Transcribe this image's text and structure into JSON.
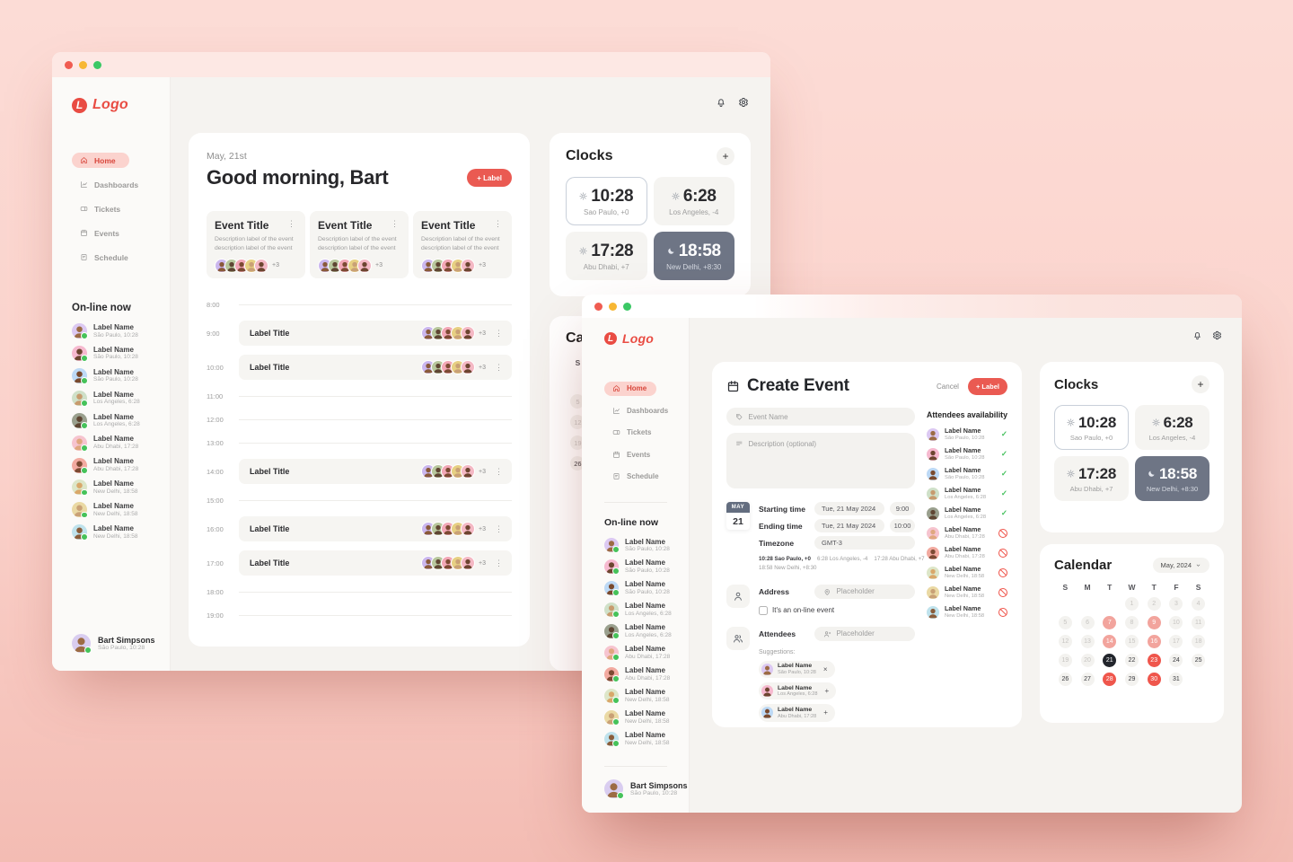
{
  "brand": {
    "logo_text": "Logo",
    "logo_letter": "L",
    "accent": "#ea5a52"
  },
  "titlebar": {
    "traffic_lights": [
      "#f05c51",
      "#f7b733",
      "#3bc865"
    ]
  },
  "icons": {
    "kebab": "⋮",
    "check": "✓",
    "add": "+",
    "bell": "bell-icon",
    "gear": "gear-icon",
    "sun": "sun-icon",
    "moon": "moon-icon",
    "chevron": "chevron-down-icon"
  },
  "nav": [
    {
      "label": "Home",
      "icon": "i-home",
      "cls": "active"
    },
    {
      "label": "Dashboards",
      "icon": "i-dash",
      "cls": ""
    },
    {
      "label": "Tickets",
      "icon": "i-ticket",
      "cls": ""
    },
    {
      "label": "Events",
      "icon": "i-events",
      "cls": ""
    },
    {
      "label": "Schedule",
      "icon": "i-schedule",
      "cls": ""
    }
  ],
  "online_heading": "On-line now",
  "online": [
    {
      "name": "Label Name",
      "sub": "São Paulo, 10:28",
      "bg": "#dcc9f2",
      "skin": "#9c6b44"
    },
    {
      "name": "Label Name",
      "sub": "São Paulo, 10:28",
      "bg": "#f6b9cf",
      "skin": "#6d4530"
    },
    {
      "name": "Label Name",
      "sub": "São Paulo, 10:28",
      "bg": "#bdd9f5",
      "skin": "#7a4a2e"
    },
    {
      "name": "Label Name",
      "sub": "Los Angeles, 6:28",
      "bg": "#cfe0c8",
      "skin": "#c79b6e"
    },
    {
      "name": "Label Name",
      "sub": "Los Angeles, 6:28",
      "bg": "#9aa08e",
      "skin": "#5f4633"
    },
    {
      "name": "Label Name",
      "sub": "Abu Dhabi, 17:28",
      "bg": "#f6c4cf",
      "skin": "#e0a77f"
    },
    {
      "name": "Label Name",
      "sub": "Abu Dhabi, 17:28",
      "bg": "#f2aaa0",
      "skin": "#7c4a33"
    },
    {
      "name": "Label Name",
      "sub": "New Delhi, 18:58",
      "bg": "#dde6c8",
      "skin": "#d9a86a"
    },
    {
      "name": "Label Name",
      "sub": "New Delhi, 18:58",
      "bg": "#ead9a4",
      "skin": "#c9a176"
    },
    {
      "name": "Label Name",
      "sub": "New Delhi, 18:58",
      "bg": "#bfe2ec",
      "skin": "#8a5d3b"
    }
  ],
  "profile": {
    "name": "Bart Simpsons",
    "sub": "São Paulo, 10:28",
    "bg": "#d9cdf0",
    "skin": "#9c6b44"
  },
  "avatar_stack": [
    {
      "bg": "#cbb7ee",
      "skin": "#8a5a3a"
    },
    {
      "bg": "#b8c79d",
      "skin": "#5f4633"
    },
    {
      "bg": "#f2a7b6",
      "skin": "#7c4a33"
    },
    {
      "bg": "#e7d083",
      "skin": "#c9a176"
    },
    {
      "bg": "#f4b8c4",
      "skin": "#6d4530"
    }
  ],
  "back": {
    "date": "May, 21st",
    "greeting": "Good morning, Bart",
    "label_button": "+ Label",
    "event_cards": [
      {
        "title": "Event Title",
        "desc": "Description label of the event description label of the event",
        "extra": "+3"
      },
      {
        "title": "Event Title",
        "desc": "Description label of the event description label of the event",
        "extra": "+3"
      },
      {
        "title": "Event Title",
        "desc": "Description label of the event description label of the event",
        "extra": "+3"
      }
    ],
    "schedule": [
      {
        "time": "8:00",
        "cls": "line"
      },
      {
        "time": "9:00",
        "cls": "event",
        "title": "Label Title",
        "extra": "+3"
      },
      {
        "time": "10:00",
        "cls": "event",
        "title": "Label Title",
        "extra": "+3"
      },
      {
        "time": "11:00",
        "cls": "line"
      },
      {
        "time": "12:00",
        "cls": "line"
      },
      {
        "time": "13:00",
        "cls": "line"
      },
      {
        "time": "14:00",
        "cls": "event",
        "title": "Label Title",
        "extra": "+3"
      },
      {
        "time": "15:00",
        "cls": "line"
      },
      {
        "time": "16:00",
        "cls": "event",
        "title": "Label Title",
        "extra": "+3"
      },
      {
        "time": "17:00",
        "cls": "event",
        "title": "Label Title",
        "extra": "+3"
      },
      {
        "time": "18:00",
        "cls": "line"
      },
      {
        "time": "19:00",
        "cls": "line"
      }
    ]
  },
  "clocks": {
    "title": "Clocks",
    "add": "+",
    "tiles": [
      {
        "time": "10:28",
        "city": "Sao Paulo, +0",
        "icon": "i-sun",
        "cls": "outlined"
      },
      {
        "time": "6:28",
        "city": "Los Angeles, -4",
        "icon": "i-sun",
        "cls": ""
      },
      {
        "time": "17:28",
        "city": "Abu Dhabi, +7",
        "icon": "i-sun",
        "cls": ""
      },
      {
        "time": "18:58",
        "city": "New Delhi, +8:30",
        "icon": "i-moon",
        "cls": "dark"
      }
    ]
  },
  "calendar": {
    "title": "Calendar",
    "month": "May, 2024",
    "weekdays": [
      "S",
      "M",
      "T",
      "W",
      "T",
      "F",
      "S"
    ],
    "cells": [
      {
        "d": "",
        "cls": "empty"
      },
      {
        "d": "",
        "cls": "empty"
      },
      {
        "d": "",
        "cls": "empty"
      },
      {
        "d": "1",
        "cls": "dim"
      },
      {
        "d": "2",
        "cls": "dim"
      },
      {
        "d": "3",
        "cls": "dim"
      },
      {
        "d": "4",
        "cls": "dim"
      },
      {
        "d": "5",
        "cls": "dim"
      },
      {
        "d": "6",
        "cls": "dim"
      },
      {
        "d": "7",
        "cls": "pink"
      },
      {
        "d": "8",
        "cls": "dim"
      },
      {
        "d": "9",
        "cls": "pink"
      },
      {
        "d": "10",
        "cls": "dim"
      },
      {
        "d": "11",
        "cls": "dim"
      },
      {
        "d": "12",
        "cls": "dim"
      },
      {
        "d": "13",
        "cls": "dim"
      },
      {
        "d": "14",
        "cls": "pink"
      },
      {
        "d": "15",
        "cls": "dim"
      },
      {
        "d": "16",
        "cls": "pink"
      },
      {
        "d": "17",
        "cls": "dim"
      },
      {
        "d": "18",
        "cls": "dim"
      },
      {
        "d": "19",
        "cls": "dim"
      },
      {
        "d": "20",
        "cls": "dim"
      },
      {
        "d": "21",
        "cls": "today"
      },
      {
        "d": "22",
        "cls": ""
      },
      {
        "d": "23",
        "cls": "red"
      },
      {
        "d": "24",
        "cls": ""
      },
      {
        "d": "25",
        "cls": ""
      },
      {
        "d": "26",
        "cls": ""
      },
      {
        "d": "27",
        "cls": ""
      },
      {
        "d": "28",
        "cls": "red"
      },
      {
        "d": "29",
        "cls": ""
      },
      {
        "d": "30",
        "cls": "red"
      },
      {
        "d": "31",
        "cls": ""
      }
    ]
  },
  "create": {
    "title": "Create Event",
    "cancel": "Cancel",
    "label_button": "+ Label",
    "event_name_placeholder": "Event Name",
    "description_placeholder": "Description (optional)",
    "badge": {
      "month": "MAY",
      "day": "21"
    },
    "starting": {
      "label": "Starting time",
      "date": "Tue, 21 May 2024",
      "time": "9:00"
    },
    "ending": {
      "label": "Ending time",
      "date": "Tue, 21 May 2024",
      "time": "10:00"
    },
    "timezone": {
      "label": "Timezone",
      "value": "GMT-3"
    },
    "tz_note_row1": [
      "10:28 Sao Paulo, +0",
      "6:28 Los Angeles, -4",
      "17:28 Abu Dhabi, +7"
    ],
    "tz_note_row2": "18:58 New Delhi, +8:30",
    "address": {
      "label": "Address",
      "placeholder": "Placeholder",
      "checkbox": "It's an on-line event"
    },
    "attendees": {
      "label": "Attendees",
      "placeholder": "Placeholder",
      "suggestions": "Suggestions:"
    },
    "chips": [
      {
        "name": "Label Name",
        "sub": "São Paulo, 10:28",
        "bg": "#dcc9f2",
        "skin": "#9c6b44",
        "action": "x"
      },
      {
        "name": "Label Name",
        "sub": "Los Angeles, 6:28",
        "bg": "#f6b9cf",
        "skin": "#6d4530",
        "action": "plus"
      },
      {
        "name": "Label Name",
        "sub": "Abu Dhabi, 17:28",
        "bg": "#bdd9f5",
        "skin": "#7a4a2e",
        "action": "plus"
      }
    ],
    "availability_heading": "Attendees availability",
    "availability": [
      {
        "name": "Label Name",
        "sub": "São Paulo, 10:28",
        "bg": "#dcc9f2",
        "skin": "#9c6b44",
        "status": "ok"
      },
      {
        "name": "Label Name",
        "sub": "São Paulo, 10:28",
        "bg": "#f6b9cf",
        "skin": "#6d4530",
        "status": "ok"
      },
      {
        "name": "Label Name",
        "sub": "São Paulo, 10:28",
        "bg": "#bdd9f5",
        "skin": "#7a4a2e",
        "status": "ok"
      },
      {
        "name": "Label Name",
        "sub": "Los Angeles, 6:28",
        "bg": "#cfe0c8",
        "skin": "#c79b6e",
        "status": "ok"
      },
      {
        "name": "Label Name",
        "sub": "Los Angeles, 6:28",
        "bg": "#9aa08e",
        "skin": "#5f4633",
        "status": "ok"
      },
      {
        "name": "Label Name",
        "sub": "Abu Dhabi, 17:28",
        "bg": "#f6c4cf",
        "skin": "#e0a77f",
        "status": "no"
      },
      {
        "name": "Label Name",
        "sub": "Abu Dhabi, 17:28",
        "bg": "#f2aaa0",
        "skin": "#7c4a33",
        "status": "no"
      },
      {
        "name": "Label Name",
        "sub": "New Delhi, 18:58",
        "bg": "#dde6c8",
        "skin": "#d9a86a",
        "status": "no"
      },
      {
        "name": "Label Name",
        "sub": "New Delhi, 18:58",
        "bg": "#ead9a4",
        "skin": "#c9a176",
        "status": "no"
      },
      {
        "name": "Label Name",
        "sub": "New Delhi, 18:58",
        "bg": "#bfe2ec",
        "skin": "#8a5d3b",
        "status": "no"
      }
    ]
  }
}
